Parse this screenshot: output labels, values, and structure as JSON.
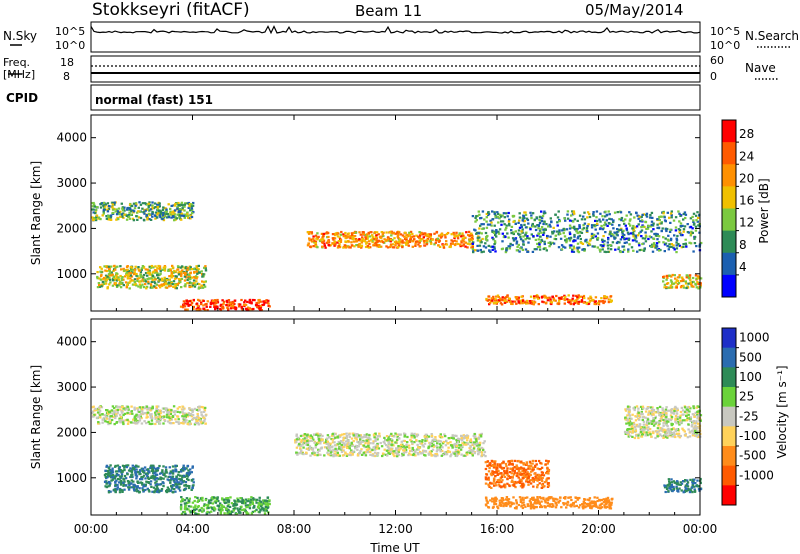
{
  "header": {
    "station": "Stokkseyri (fitACF)",
    "beam": "Beam 11",
    "date": "05/May/2014"
  },
  "noise_panel": {
    "left_label": "N.Sky",
    "right_label": "N.Search",
    "left_ticks": [
      "10^5",
      "10^0"
    ],
    "right_ticks": [
      "10^5",
      "10^0"
    ]
  },
  "freq_panel": {
    "left_label_top": "Freq.",
    "left_label_unit": "[MHz]",
    "right_label": "Nave",
    "left_ticks": [
      "18",
      "8"
    ],
    "right_ticks": [
      "60",
      "0"
    ]
  },
  "cpid": {
    "label": "CPID",
    "value": "normal (fast) 151"
  },
  "axes": {
    "ylabel": "Slant Range [km]",
    "yticks": [
      "4000",
      "3000",
      "2000",
      "1000"
    ],
    "xlabel": "Time UT",
    "xticks": [
      "00:00",
      "04:00",
      "08:00",
      "12:00",
      "16:00",
      "20:00",
      "00:00"
    ]
  },
  "power_colorbar": {
    "label": "Power [dB]",
    "ticks": [
      "28",
      "24",
      "20",
      "16",
      "12",
      "8",
      "4"
    ],
    "colors": [
      "#ff0000",
      "#ff5a00",
      "#ff9000",
      "#f0c000",
      "#7bc940",
      "#2e8b57",
      "#1b5fb0",
      "#0000ff"
    ]
  },
  "velocity_colorbar": {
    "label": "Velocity [m s⁻¹]",
    "ticks": [
      "1000",
      "500",
      "100",
      "25",
      "-25",
      "-100",
      "-500",
      "-1000"
    ],
    "colors": [
      "#1e2fc8",
      "#2a6cb0",
      "#2e8b57",
      "#6bd33a",
      "#c8c8c0",
      "#ffd25a",
      "#ff8c1a",
      "#ff5a00",
      "#ff0000"
    ]
  },
  "chart_data": [
    {
      "type": "heatmap",
      "title": "Power",
      "xlabel": "Time UT",
      "ylabel": "Slant Range [km]",
      "xlim": [
        "00:00",
        "24:00"
      ],
      "ylim": [
        180,
        4500
      ],
      "colorbar": {
        "label": "Power [dB]",
        "range": [
          3,
          30
        ]
      },
      "regions": [
        {
          "t0": 0.0,
          "t1": 4.0,
          "r0": 2200,
          "r1": 2600,
          "value": 12
        },
        {
          "t0": 0.2,
          "t1": 4.5,
          "r0": 700,
          "r1": 1200,
          "value": 16
        },
        {
          "t0": 3.5,
          "t1": 7.0,
          "r0": 220,
          "r1": 450,
          "value": 28
        },
        {
          "t0": 8.5,
          "t1": 15.0,
          "r0": 1600,
          "r1": 1950,
          "value": 22
        },
        {
          "t0": 15.5,
          "t1": 20.5,
          "r0": 350,
          "r1": 550,
          "value": 24
        },
        {
          "t0": 15.0,
          "t1": 24.0,
          "r0": 1500,
          "r1": 2400,
          "value": 10
        },
        {
          "t0": 22.5,
          "t1": 24.0,
          "r0": 700,
          "r1": 1000,
          "value": 18
        }
      ]
    },
    {
      "type": "heatmap",
      "title": "Velocity",
      "xlabel": "Time UT",
      "ylabel": "Slant Range [km]",
      "xlim": [
        "00:00",
        "24:00"
      ],
      "ylim": [
        180,
        4500
      ],
      "colorbar": {
        "label": "Velocity [m s⁻¹]",
        "range": [
          -1000,
          1000
        ]
      },
      "regions": [
        {
          "t0": 0.0,
          "t1": 4.5,
          "r0": 2200,
          "r1": 2600,
          "value": 0
        },
        {
          "t0": 0.5,
          "t1": 4.0,
          "r0": 700,
          "r1": 1300,
          "value": 500
        },
        {
          "t0": 3.5,
          "t1": 7.0,
          "r0": 220,
          "r1": 600,
          "value": 100
        },
        {
          "t0": 8.0,
          "t1": 15.5,
          "r0": 1500,
          "r1": 2000,
          "value": 0
        },
        {
          "t0": 15.5,
          "t1": 20.5,
          "r0": 350,
          "r1": 600,
          "value": -300
        },
        {
          "t0": 15.5,
          "t1": 18.0,
          "r0": 800,
          "r1": 1400,
          "value": -500
        },
        {
          "t0": 21.0,
          "t1": 24.0,
          "r0": 1900,
          "r1": 2600,
          "value": 0
        },
        {
          "t0": 22.5,
          "t1": 24.0,
          "r0": 700,
          "r1": 1000,
          "value": 500
        }
      ]
    }
  ]
}
